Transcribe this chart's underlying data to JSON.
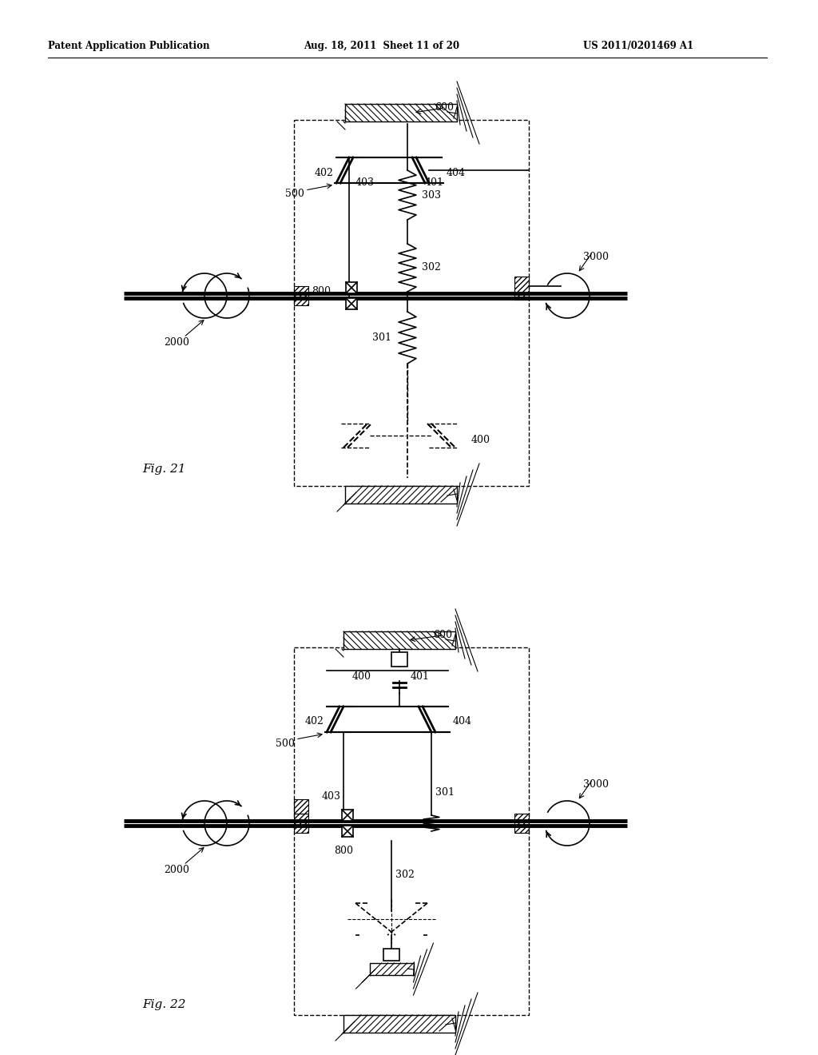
{
  "header_left": "Patent Application Publication",
  "header_mid": "Aug. 18, 2011  Sheet 11 of 20",
  "header_right": "US 2011/0201469 A1",
  "fig21_label": "Fig. 21",
  "fig22_label": "Fig. 22",
  "bg": "#ffffff",
  "lc": "#000000"
}
